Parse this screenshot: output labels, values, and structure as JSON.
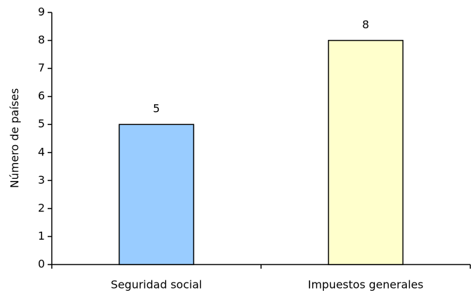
{
  "chart_data": {
    "type": "bar",
    "ylabel": "Número de países",
    "categories": [
      "Seguridad social",
      "Impuestos generales"
    ],
    "values": [
      5,
      8
    ],
    "colors": [
      "#99ccff",
      "#ffffcc"
    ],
    "ylim": [
      0,
      9
    ],
    "yticks": [
      0,
      1,
      2,
      3,
      4,
      5,
      6,
      7,
      8,
      9
    ],
    "grid": false,
    "data_labels": true
  }
}
